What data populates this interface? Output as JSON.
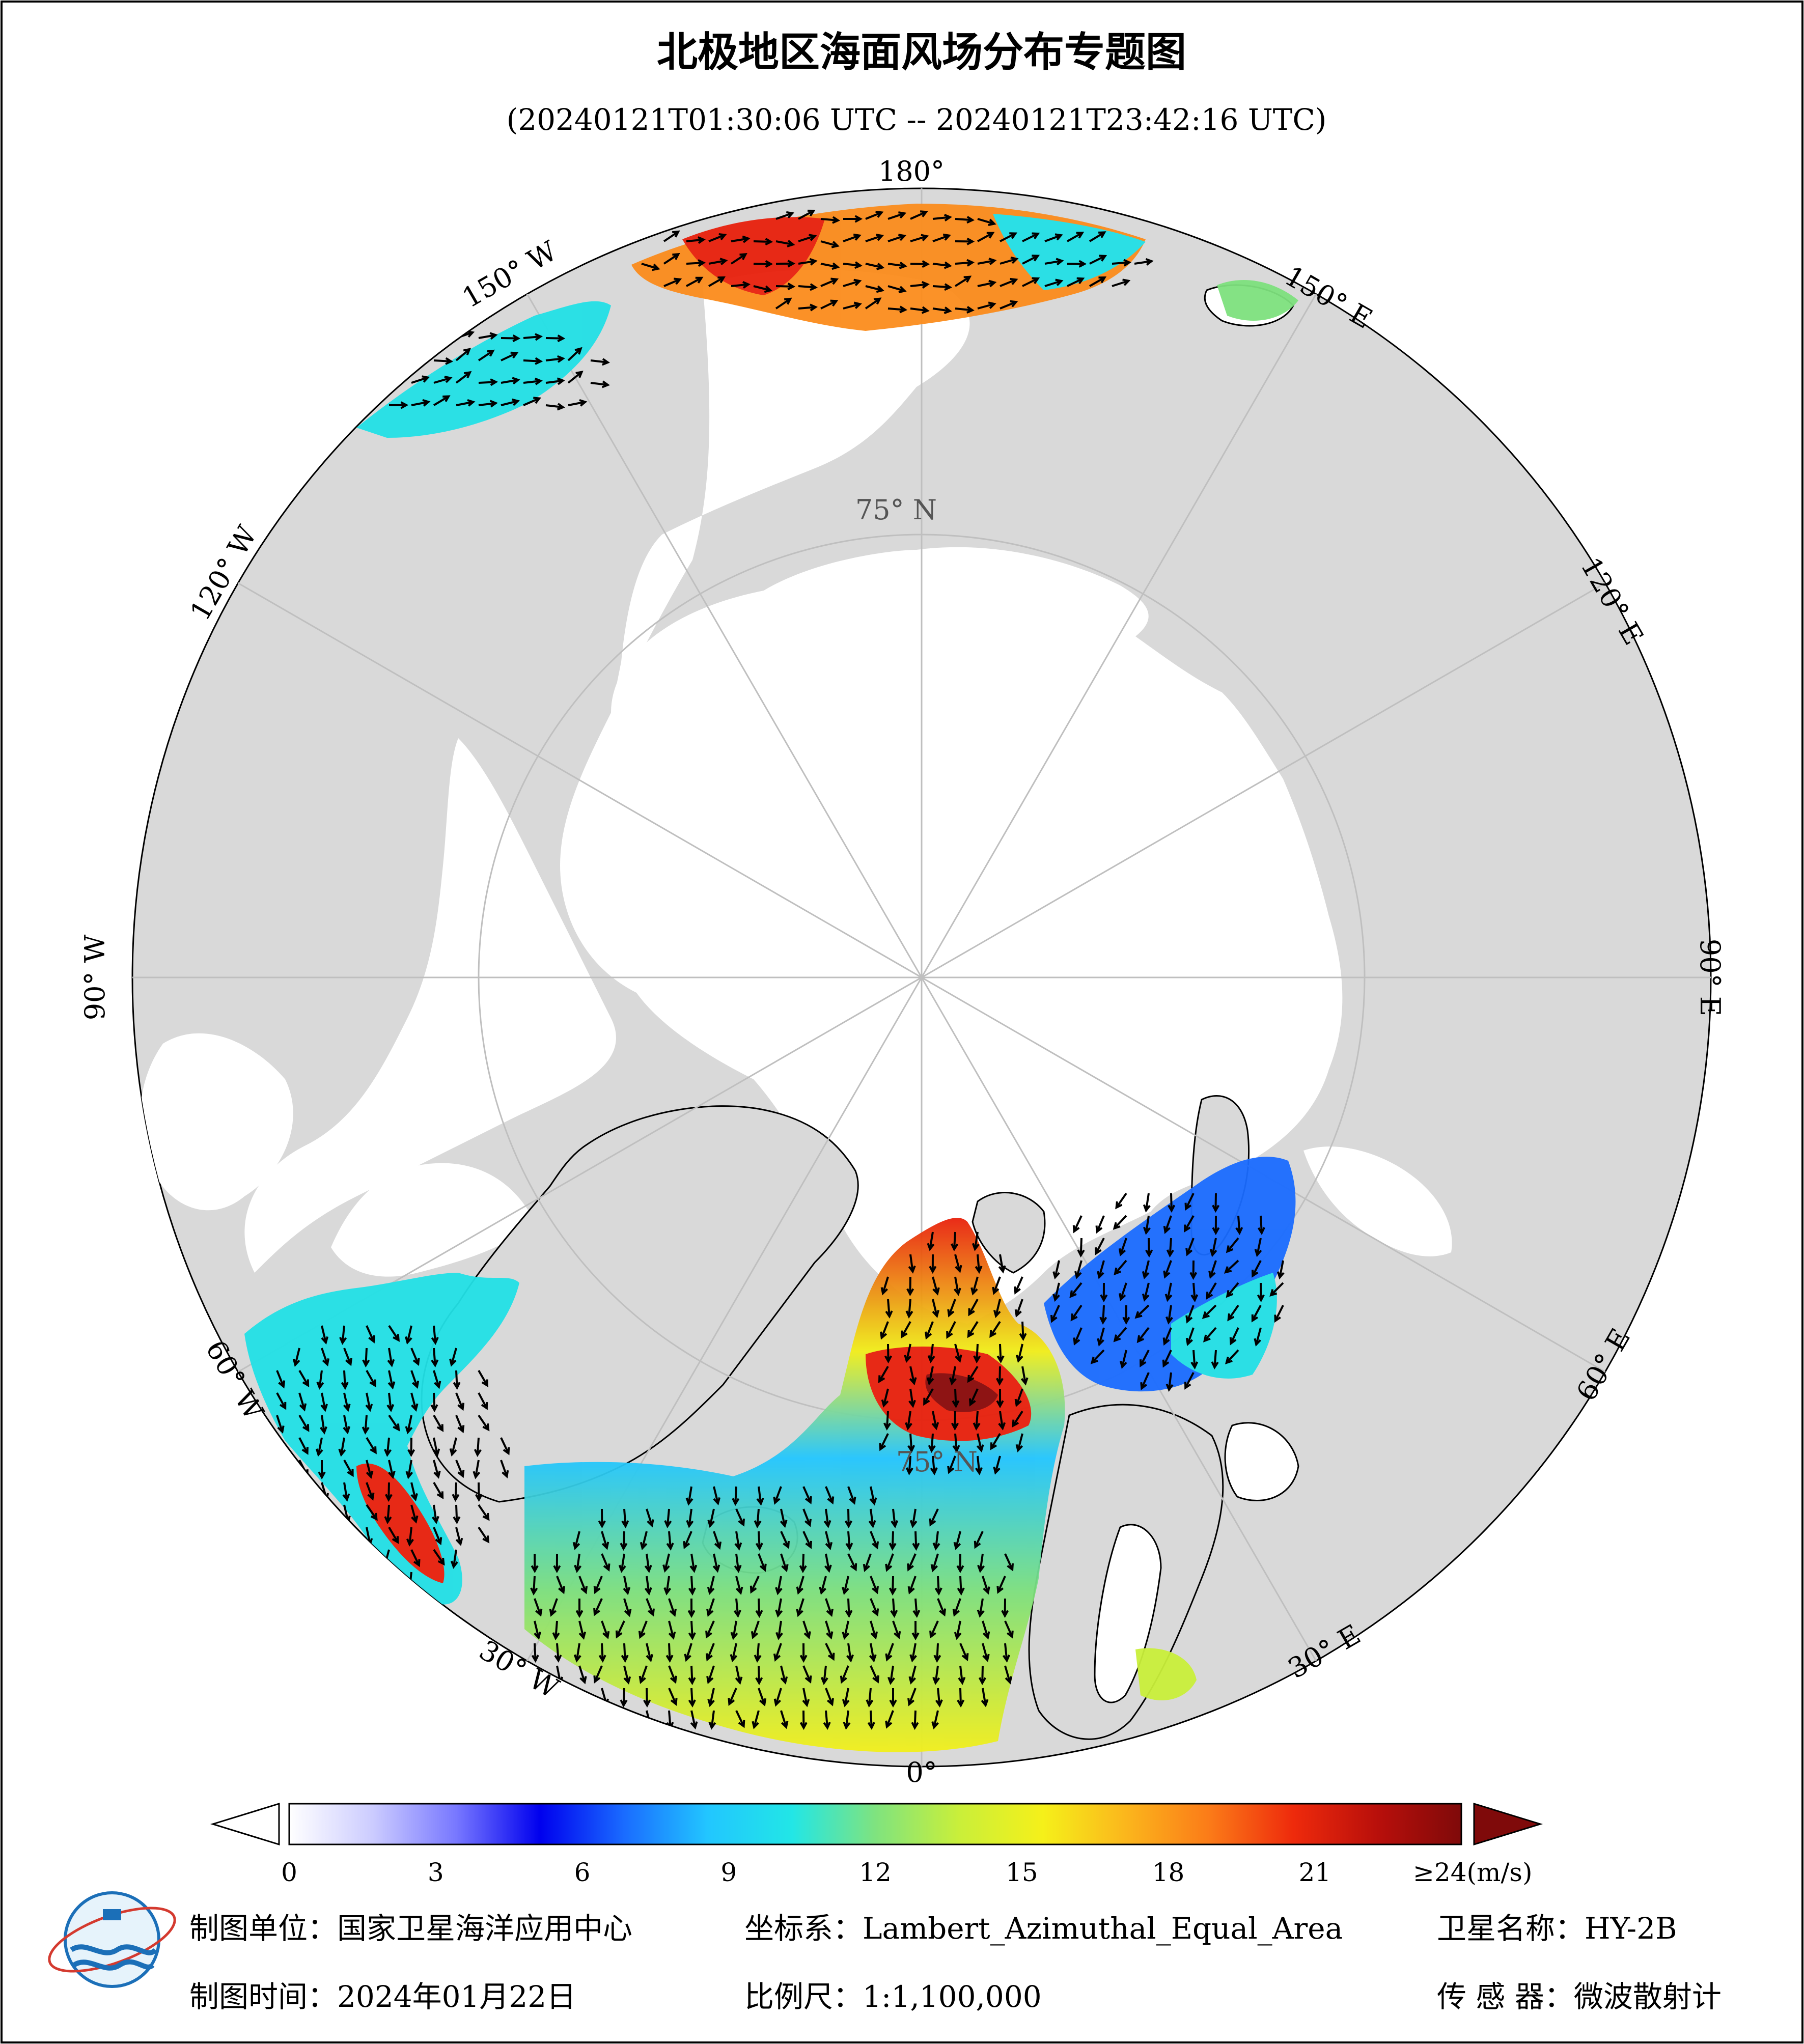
{
  "title": "北极地区海面风场分布专题图",
  "time_range": "(20240121T01:30:06 UTC -- 20240121T23:42:16 UTC)",
  "map": {
    "projection_note": "Polar stereographic view centred on North Pole",
    "lat_label": "75° N",
    "lon_labels": {
      "lon_0": "0°",
      "lon_30e": "30° E",
      "lon_60e": "60° E",
      "lon_90e": "90° E",
      "lon_120e": "120° E",
      "lon_150e": "150° E",
      "lon_180": "180°",
      "lon_150w": "150° W",
      "lon_120w": "120° W",
      "lon_90w": "90° W",
      "lon_60w": "60° W",
      "lon_30w": "30° W"
    },
    "colors": {
      "land": "#d9d9d9",
      "ocean_ice": "#ffffff",
      "graticule": "#bfbfbf",
      "coast": "#000000",
      "wind_low": "#1f1fff",
      "wind_mid": "#22e0e6",
      "wind_green": "#7de07d",
      "wind_yellow": "#f2ef1a",
      "wind_orange": "#fb8c1c",
      "wind_red": "#e8200c",
      "wind_max": "#8b0a0a"
    }
  },
  "colorbar": {
    "unit": "(m/s)",
    "max_prefix": "≥24",
    "ticks": [
      "0",
      "3",
      "6",
      "9",
      "12",
      "15",
      "18",
      "21"
    ],
    "tick_values": [
      0,
      3,
      6,
      9,
      12,
      15,
      18,
      21
    ],
    "range": [
      0,
      24
    ],
    "stops": [
      "#ffffff",
      "#ccccff",
      "#7777ff",
      "#0000ee",
      "#1a6cff",
      "#22c6ff",
      "#22e6e6",
      "#7fe37f",
      "#c9ef3a",
      "#f5f01a",
      "#fbb61c",
      "#fb7a18",
      "#ee2a0c",
      "#b80f0b",
      "#7f0a0a"
    ]
  },
  "footer": {
    "org_label": "制图单位：国家卫星海洋应用中心",
    "coord_label": "坐标系：Lambert_Azimuthal_Equal_Area",
    "satellite_label": "卫星名称：HY-2B",
    "date_label": "制图时间：2024年01月22日",
    "scale_label": "比例尺：1:1,100,000",
    "sensor_label": "传 感 器：微波散射计"
  },
  "logo": {
    "icon": "nsoas-logo-icon"
  }
}
